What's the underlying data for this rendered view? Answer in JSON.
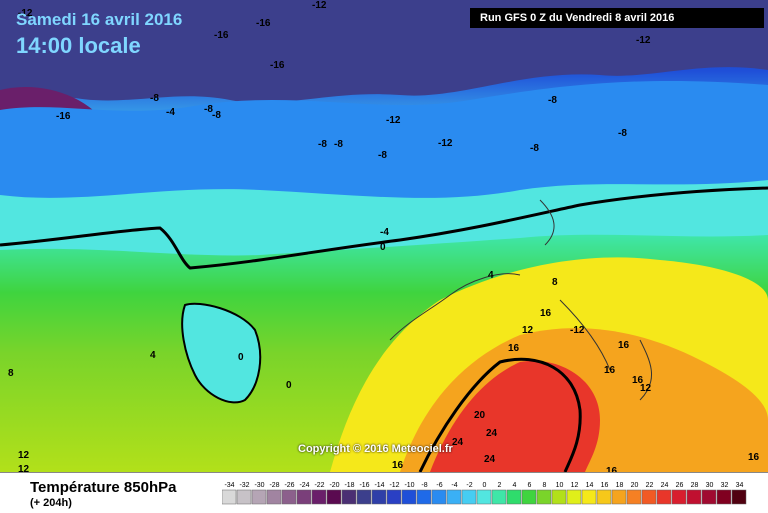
{
  "header": {
    "date": "Samedi 16 avril 2016",
    "time": "14:00 locale",
    "run": "Run GFS 0 Z du Vendredi 8 avril 2016"
  },
  "legend": {
    "title": "Température 850hPa",
    "subtitle": "(+ 204h)",
    "ticks": [
      "-34",
      "-32",
      "-30",
      "-28",
      "-26",
      "-24",
      "-22",
      "-20",
      "-18",
      "-16",
      "-14",
      "-12",
      "-10",
      "-8",
      "-6",
      "-4",
      "-2",
      "0",
      "2",
      "4",
      "6",
      "8",
      "10",
      "12",
      "14",
      "16",
      "18",
      "20",
      "22",
      "24",
      "26",
      "28",
      "30",
      "32",
      "34"
    ],
    "colors": [
      "#d9d9d9",
      "#c7c2c7",
      "#b5a5b5",
      "#a184a1",
      "#8c608c",
      "#7a3f7a",
      "#6a1f6a",
      "#5a0a50",
      "#4b2f73",
      "#3c3f8c",
      "#2f3fa8",
      "#2a40c4",
      "#1f4fd8",
      "#1f6ae8",
      "#2a8bf0",
      "#3ab0f5",
      "#46cdf2",
      "#52e6e0",
      "#3fe6a8",
      "#2fdc6c",
      "#3fd43f",
      "#7ad42a",
      "#b2e01a",
      "#e0ef1a",
      "#f5e81a",
      "#f6c81a",
      "#f5a41e",
      "#f58023",
      "#f15a24",
      "#e8362a",
      "#d81e2e",
      "#c01030",
      "#a00a30",
      "#800020",
      "#500010"
    ]
  },
  "labels": [
    {
      "text": "-12"
    },
    {
      "text": "-16"
    },
    {
      "text": "-16"
    },
    {
      "text": "-12"
    },
    {
      "text": "-16"
    },
    {
      "text": "-16"
    },
    {
      "text": "-8"
    },
    {
      "text": "-4"
    },
    {
      "text": "-8"
    },
    {
      "text": "-8"
    },
    {
      "text": "-8"
    },
    {
      "text": "-8"
    },
    {
      "text": "-8"
    },
    {
      "text": "-12"
    },
    {
      "text": "-12"
    },
    {
      "text": "-8"
    },
    {
      "text": "-8"
    },
    {
      "text": "-8"
    },
    {
      "text": "-12"
    },
    {
      "text": "-4"
    },
    {
      "text": "0"
    },
    {
      "text": "4"
    },
    {
      "text": "8"
    },
    {
      "text": "16"
    },
    {
      "text": "16"
    },
    {
      "text": "12"
    },
    {
      "text": "-12"
    },
    {
      "text": "16"
    },
    {
      "text": "16"
    },
    {
      "text": "12"
    },
    {
      "text": "16"
    },
    {
      "text": "20"
    },
    {
      "text": "24"
    },
    {
      "text": "24"
    },
    {
      "text": "24"
    },
    {
      "text": "16"
    },
    {
      "text": "16"
    },
    {
      "text": "4"
    },
    {
      "text": "0"
    },
    {
      "text": "0"
    },
    {
      "text": "8"
    },
    {
      "text": "12"
    },
    {
      "text": "12"
    },
    {
      "text": "16"
    }
  ],
  "copyright": "Copyright © 2016 Meteociel.fr"
}
